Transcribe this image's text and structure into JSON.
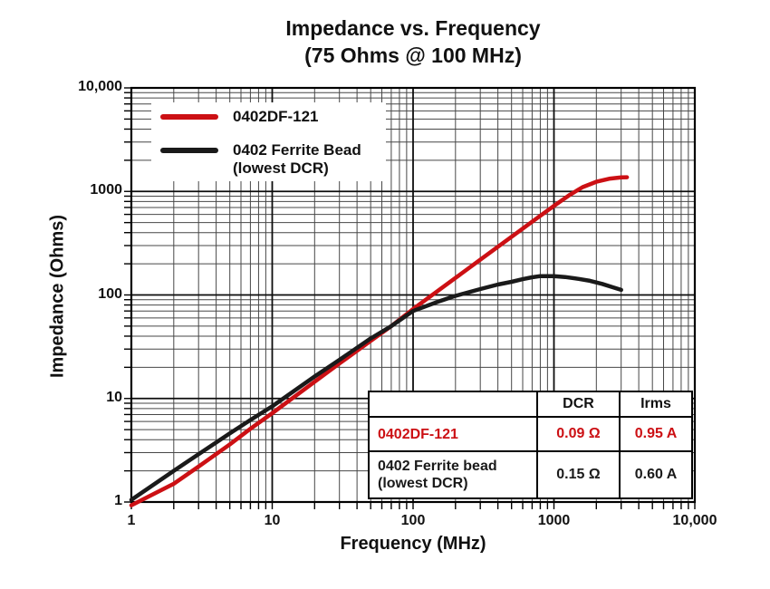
{
  "chart_data": {
    "type": "line",
    "title": "Impedance vs. Frequency",
    "subtitle": "(75 Ohms @ 100 MHz)",
    "xlabel": "Frequency (MHz)",
    "ylabel": "Impedance (Ohms)",
    "x_scale": "log",
    "y_scale": "log",
    "xlim": [
      1,
      10000
    ],
    "ylim": [
      1,
      10000
    ],
    "grid": "log major+minor, both axes",
    "legend_position": "top-left inside plot",
    "x_ticks": [
      {
        "v": 1,
        "label": "1"
      },
      {
        "v": 10,
        "label": "10"
      },
      {
        "v": 100,
        "label": "100"
      },
      {
        "v": 1000,
        "label": "1000"
      },
      {
        "v": 10000,
        "label": "10,000"
      }
    ],
    "y_ticks": [
      {
        "v": 1,
        "label": "1"
      },
      {
        "v": 10,
        "label": "10"
      },
      {
        "v": 100,
        "label": "100"
      },
      {
        "v": 1000,
        "label": "1000"
      },
      {
        "v": 10000,
        "label": "10,000"
      }
    ],
    "series": [
      {
        "name": "0402DF-121",
        "color": "#cc1014",
        "points": [
          [
            1,
            0.93
          ],
          [
            2,
            1.5
          ],
          [
            3,
            2.2
          ],
          [
            5,
            3.6
          ],
          [
            7,
            5.1
          ],
          [
            10,
            7.2
          ],
          [
            20,
            14.5
          ],
          [
            30,
            21.8
          ],
          [
            50,
            36
          ],
          [
            70,
            50
          ],
          [
            100,
            73
          ],
          [
            200,
            146
          ],
          [
            300,
            219
          ],
          [
            500,
            365
          ],
          [
            700,
            510
          ],
          [
            1000,
            725
          ],
          [
            1300,
            930
          ],
          [
            1600,
            1100
          ],
          [
            2000,
            1240
          ],
          [
            2500,
            1330
          ],
          [
            3000,
            1365
          ],
          [
            3300,
            1370
          ]
        ]
      },
      {
        "name": "0402 Ferrite Bead\n(lowest DCR)",
        "color": "#1a1a1a",
        "points": [
          [
            1,
            1.05
          ],
          [
            2,
            2.0
          ],
          [
            3,
            2.9
          ],
          [
            5,
            4.6
          ],
          [
            7,
            6.2
          ],
          [
            10,
            8.4
          ],
          [
            20,
            16.3
          ],
          [
            30,
            23.6
          ],
          [
            50,
            38
          ],
          [
            70,
            50
          ],
          [
            100,
            70
          ],
          [
            150,
            86
          ],
          [
            200,
            98
          ],
          [
            300,
            114
          ],
          [
            400,
            126
          ],
          [
            500,
            134
          ],
          [
            600,
            142
          ],
          [
            700,
            148
          ],
          [
            800,
            152
          ],
          [
            1000,
            152
          ],
          [
            1200,
            149
          ],
          [
            1500,
            143
          ],
          [
            1800,
            137
          ],
          [
            2200,
            128
          ],
          [
            2600,
            119
          ],
          [
            3000,
            112
          ]
        ]
      }
    ]
  },
  "table": {
    "headers": {
      "part": "",
      "dcr": "DCR",
      "irms": "Irms"
    },
    "rows": [
      {
        "part": "0402DF-121",
        "dcr": "0.09 Ω",
        "irms": "0.95 A",
        "color": "#cc1014"
      },
      {
        "part": "0402 Ferrite bead\n(lowest DCR)",
        "dcr": "0.15 Ω",
        "irms": "0.60 A",
        "color": "#1a1a1a"
      }
    ]
  },
  "colors": {
    "background": "#ffffff",
    "grid_minor": "#474747",
    "grid_major": "#0d0d0d",
    "plot_border": "#000000",
    "text": "#111111",
    "series_red": "#cc1014",
    "series_black": "#1a1a1a"
  }
}
